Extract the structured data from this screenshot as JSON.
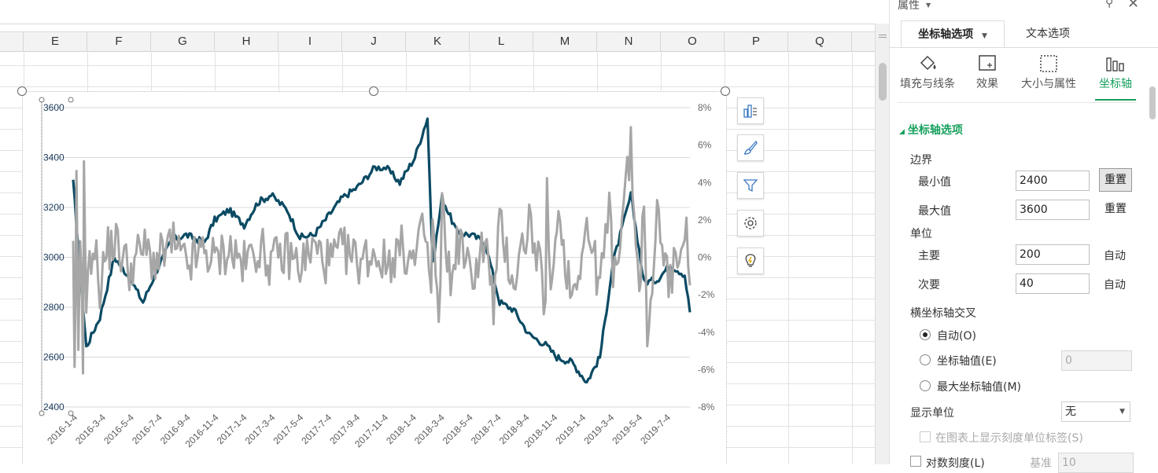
{
  "sheet": {
    "columns": [
      "E",
      "F",
      "G",
      "H",
      "I",
      "J",
      "K",
      "L",
      "M",
      "N",
      "O",
      "P",
      "Q"
    ]
  },
  "chart_data": {
    "type": "line",
    "x_tick_labels": [
      "2016-1-4",
      "2016-3-4",
      "2016-5-4",
      "2016-7-4",
      "2016-9-4",
      "2016-11-4",
      "2017-1-4",
      "2017-3-4",
      "2017-5-4",
      "2017-7-4",
      "2017-9-4",
      "2017-11-4",
      "2018-1-4",
      "2018-3-4",
      "2018-5-4",
      "2018-7-4",
      "2018-9-4",
      "2018-11-4",
      "2019-1-4",
      "2019-3-4",
      "2019-5-4",
      "2019-7-4"
    ],
    "y_axis": {
      "ticks": [
        2400,
        2600,
        2800,
        3000,
        3200,
        3400,
        3600
      ],
      "min": 2400,
      "max": 3600
    },
    "y2_axis": {
      "ticks": [
        "8%",
        "6%",
        "4%",
        "2%",
        "0%",
        "-2%",
        "-4%",
        "-6%",
        "-8%"
      ],
      "min": -8,
      "max": 8
    },
    "series": [
      {
        "color": "#0b4a63",
        "axis": "left",
        "x": [
          "2016-01-04",
          "2016-02-01",
          "2016-03-01",
          "2016-04-01",
          "2016-05-03",
          "2016-06-01",
          "2016-07-01",
          "2016-08-01",
          "2016-09-01",
          "2016-10-10",
          "2016-11-01",
          "2016-12-01",
          "2017-01-03",
          "2017-02-01",
          "2017-03-01",
          "2017-04-05",
          "2017-05-02",
          "2017-06-01",
          "2017-07-03",
          "2017-08-01",
          "2017-09-01",
          "2017-10-09",
          "2017-11-01",
          "2017-12-01",
          "2018-01-02",
          "2018-01-29",
          "2018-02-09",
          "2018-03-01",
          "2018-04-02",
          "2018-05-02",
          "2018-06-01",
          "2018-07-02",
          "2018-08-01",
          "2018-09-03",
          "2018-10-08",
          "2018-11-01",
          "2018-12-03",
          "2019-01-04",
          "2019-02-01",
          "2019-03-01",
          "2019-04-08",
          "2019-05-06",
          "2019-06-03",
          "2019-07-01",
          "2019-08-01",
          "2019-08-12"
        ],
        "values": [
          3300,
          2640,
          2760,
          3000,
          2920,
          2820,
          2950,
          3070,
          3090,
          3060,
          3150,
          3190,
          3130,
          3220,
          3250,
          3190,
          3080,
          3090,
          3170,
          3240,
          3280,
          3360,
          3360,
          3300,
          3400,
          3560,
          2970,
          3240,
          3100,
          3090,
          3060,
          2820,
          2790,
          2690,
          2650,
          2600,
          2580,
          2500,
          2600,
          2980,
          3250,
          2900,
          2910,
          2970,
          2930,
          2780
        ]
      },
      {
        "color": "#a6a6a6",
        "axis": "right",
        "x": [
          "2016-01-04",
          "2016-01-07",
          "2016-01-11",
          "2016-01-15",
          "2016-01-19",
          "2016-01-25",
          "2016-01-27",
          "2016-02-01",
          "2016-02-15",
          "2016-03-01",
          "2016-03-15",
          "2016-04-01",
          "2016-05-03",
          "2016-06-01",
          "2016-07-01",
          "2016-08-01",
          "2016-09-01",
          "2016-10-10",
          "2016-11-01",
          "2016-12-01",
          "2017-01-03",
          "2017-02-01",
          "2017-03-01",
          "2017-04-05",
          "2017-05-02",
          "2017-06-01",
          "2017-07-03",
          "2017-08-01",
          "2017-09-01",
          "2017-10-09",
          "2017-11-01",
          "2017-12-01",
          "2018-01-02",
          "2018-01-22",
          "2018-02-01",
          "2018-02-06",
          "2018-02-09",
          "2018-02-22",
          "2018-03-01",
          "2018-03-23",
          "2018-04-02",
          "2018-05-02",
          "2018-06-01",
          "2018-06-19",
          "2018-07-02",
          "2018-08-01",
          "2018-09-03",
          "2018-10-08",
          "2018-10-11",
          "2018-10-19",
          "2018-11-01",
          "2018-12-03",
          "2019-01-04",
          "2019-02-01",
          "2019-02-25",
          "2019-03-01",
          "2019-04-08",
          "2019-04-26",
          "2019-05-06",
          "2019-05-13",
          "2019-06-03",
          "2019-07-01",
          "2019-08-01",
          "2019-08-12"
        ],
        "values": [
          0.0,
          -7.0,
          3.5,
          -5.0,
          2.0,
          -5.7,
          4.2,
          -2.4,
          1.0,
          -1.5,
          0.3,
          0.9,
          -0.6,
          0.5,
          -0.3,
          0.8,
          -0.5,
          0.4,
          -0.2,
          0.5,
          -0.4,
          0.6,
          -0.3,
          0.2,
          -0.4,
          0.5,
          -0.3,
          0.4,
          -0.2,
          0.3,
          -0.4,
          0.5,
          -0.3,
          1.6,
          -0.6,
          -2.0,
          2.0,
          -4.0,
          2.5,
          -1.8,
          1.2,
          -1.1,
          0.9,
          -2.6,
          1.7,
          -1.3,
          2.0,
          -2.3,
          3.5,
          -2.8,
          2.6,
          -2.0,
          1.6,
          -1.5,
          3.0,
          -1.2,
          5.7,
          -2.0,
          3.5,
          -5.5,
          2.5,
          -1.6,
          2.0,
          -1.5
        ]
      }
    ]
  },
  "panel": {
    "title": "属性",
    "tabs": [
      "坐标轴选项",
      "文本选项"
    ],
    "icon_tabs": [
      "填充与线条",
      "效果",
      "大小与属性",
      "坐标轴"
    ],
    "section_title": "坐标轴选项",
    "bounds_label": "边界",
    "min_label": "最小值",
    "min_value": "2400",
    "max_label": "最大值",
    "max_value": "3600",
    "reset_label": "重置",
    "reset_label2": "重置",
    "unit_label": "单位",
    "major_label": "主要",
    "major_value": "200",
    "auto_label": "自动",
    "minor_label": "次要",
    "minor_value": "40",
    "auto_label2": "自动",
    "cross_label": "横坐标轴交叉",
    "radio_auto": "自动(O)",
    "radio_value": "坐标轴值(E)",
    "radio_value_input": "0",
    "radio_max": "最大坐标轴值(M)",
    "display_unit_label": "显示单位",
    "display_unit_value": "无",
    "show_unit_label": "在图表上显示刻度单位标签(S)",
    "log_label": "对数刻度(L)",
    "base_label": "基准",
    "base_value": "10"
  },
  "colors": {
    "accent": "#17a05d",
    "series_dark": "#0b4a63",
    "series_gray": "#a6a6a6"
  }
}
